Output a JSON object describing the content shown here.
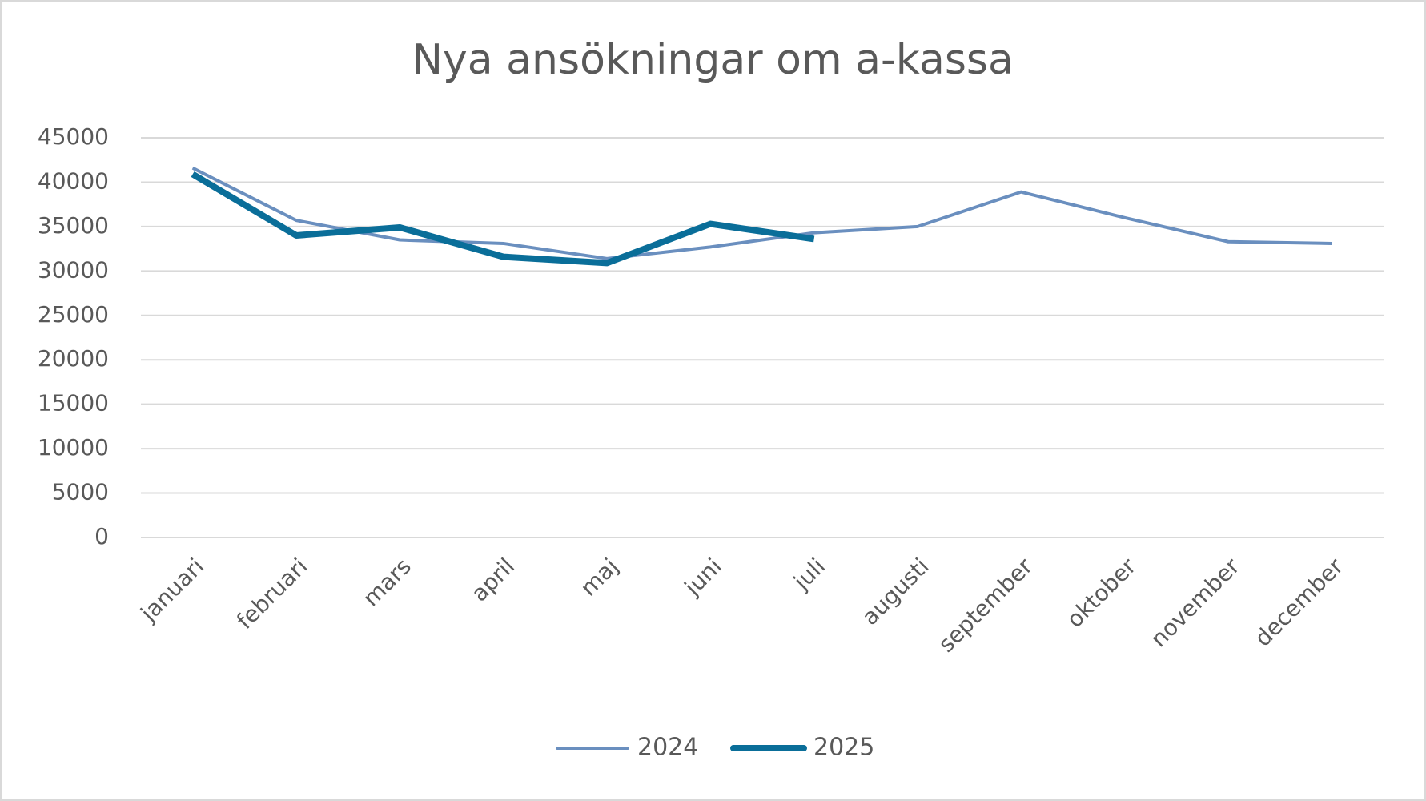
{
  "chart_data": {
    "type": "line",
    "title": "Nya ansökningar om a-kassa",
    "categories": [
      "januari",
      "februari",
      "mars",
      "april",
      "maj",
      "juni",
      "juli",
      "augusti",
      "september",
      "oktober",
      "november",
      "december"
    ],
    "series": [
      {
        "name": "2024",
        "color": "#6a8fbf",
        "values": [
          41600,
          35700,
          33500,
          33100,
          31400,
          32700,
          34300,
          35000,
          38900,
          36000,
          33300,
          33100
        ]
      },
      {
        "name": "2025",
        "color": "#0a6e99",
        "values": [
          40900,
          34000,
          34900,
          31600,
          30900,
          35300,
          33600,
          null,
          null,
          null,
          null,
          null
        ]
      }
    ],
    "ylim": [
      0,
      45000
    ],
    "yticks": [
      0,
      5000,
      10000,
      15000,
      20000,
      25000,
      30000,
      35000,
      40000,
      45000
    ],
    "grid": true,
    "legend": "bottom"
  }
}
